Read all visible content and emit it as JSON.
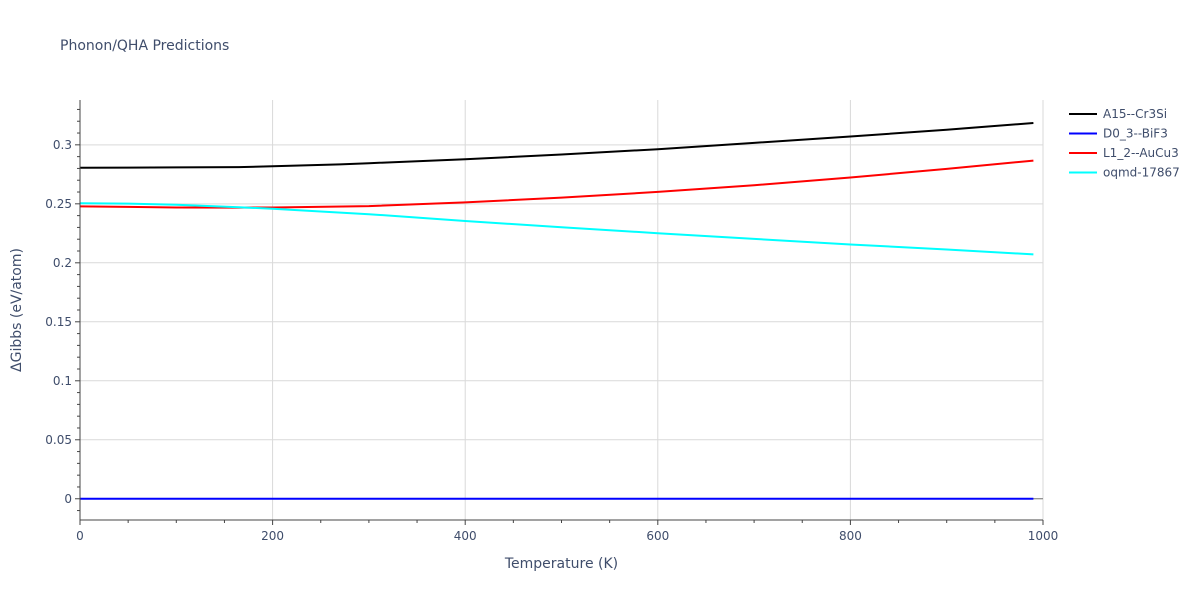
{
  "chart_data": {
    "type": "line",
    "title": "Phonon/QHA Predictions",
    "xlabel": "Temperature (K)",
    "ylabel": "ΔGibbs (eV/atom)",
    "xlim": [
      0,
      1000
    ],
    "ylim": [
      -0.018,
      0.338
    ],
    "x_ticks": [
      0,
      200,
      400,
      600,
      800,
      1000
    ],
    "x_tick_labels": [
      "0",
      "200",
      "400",
      "600",
      "800",
      "1000"
    ],
    "y_ticks": [
      0,
      0.05,
      0.1,
      0.15,
      0.2,
      0.25,
      0.3
    ],
    "y_tick_labels": [
      "0",
      "0.05",
      "0.1",
      "0.15",
      "0.2",
      "0.25",
      "0.3"
    ],
    "grid": true,
    "legend_position": "top-right",
    "series": [
      {
        "name": "A15--Cr3Si",
        "color": "#000000",
        "x": [
          0,
          50,
          100,
          165,
          200,
          270,
          300,
          400,
          500,
          600,
          700,
          800,
          900,
          990
        ],
        "y": [
          0.2805,
          0.2807,
          0.2809,
          0.2811,
          0.2818,
          0.2834,
          0.2844,
          0.2877,
          0.2918,
          0.2963,
          0.3016,
          0.3071,
          0.3128,
          0.3185
        ]
      },
      {
        "name": "D0_3--BiF3",
        "color": "#0000ff",
        "x": [
          0,
          200,
          400,
          600,
          800,
          990
        ],
        "y": [
          0,
          0,
          0,
          0,
          0,
          0
        ]
      },
      {
        "name": "L1_2--AuCu3",
        "color": "#ff0000",
        "x": [
          0,
          50,
          100,
          165,
          200,
          300,
          400,
          500,
          600,
          700,
          800,
          900,
          990
        ],
        "y": [
          0.2478,
          0.2474,
          0.2469,
          0.2468,
          0.2469,
          0.2481,
          0.2512,
          0.2553,
          0.2601,
          0.2658,
          0.2723,
          0.2796,
          0.2866
        ]
      },
      {
        "name": "oqmd-17867",
        "color": "#00ffff",
        "x": [
          0,
          50,
          100,
          165,
          200,
          300,
          400,
          500,
          600,
          700,
          800,
          900,
          990
        ],
        "y": [
          0.2505,
          0.2502,
          0.2492,
          0.2471,
          0.2458,
          0.2412,
          0.2354,
          0.2302,
          0.2251,
          0.2203,
          0.2155,
          0.2113,
          0.2071
        ]
      }
    ]
  }
}
